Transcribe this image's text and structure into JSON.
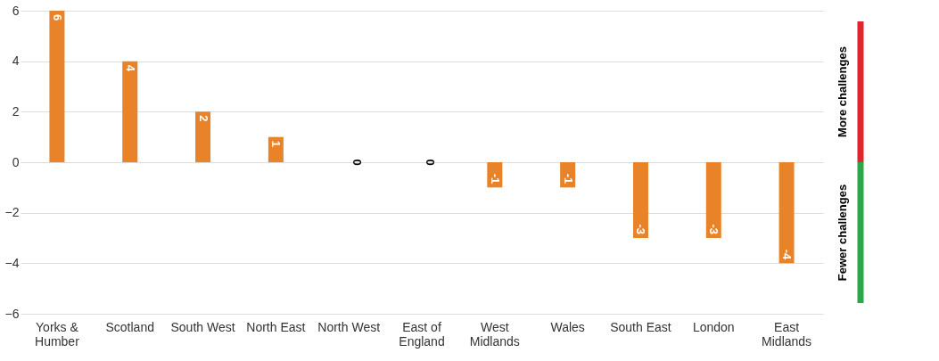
{
  "chart_data": {
    "type": "bar",
    "categories": [
      "Yorks & Humber",
      "Scotland",
      "South West",
      "North East",
      "North West",
      "East of England",
      "West Midlands",
      "Wales",
      "South East",
      "London",
      "East Midlands"
    ],
    "values": [
      6,
      4,
      2,
      1,
      0,
      0,
      -1,
      -1,
      -3,
      -3,
      -4
    ],
    "color": "#e8832a",
    "ylim": [
      -6,
      6
    ],
    "yticks": [
      -6,
      -4,
      -2,
      0,
      2,
      4,
      6
    ],
    "grid": "y",
    "data_labels": true,
    "annotations": [
      "More challenges",
      "Fewer challenges"
    ]
  }
}
